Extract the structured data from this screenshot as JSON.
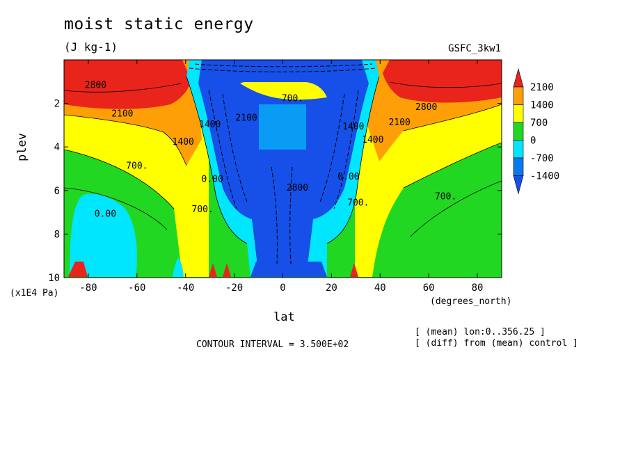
{
  "header": {
    "title": "moist static energy",
    "units": "(J kg-1)",
    "model": "GSFC_3kw1"
  },
  "footer": {
    "contour_interval": "CONTOUR INTERVAL = 3.500E+02",
    "mean_note": "[ (mean) lon:0..356.25 ]",
    "diff_note": "[ (diff) from (mean) control ]"
  },
  "chart_data": {
    "type": "heatmap",
    "title": "moist static energy",
    "subtitle": "(J kg-1)",
    "xlabel": "lat",
    "xunit": "(degrees_north)",
    "ylabel": "plev",
    "yunit": "(x1E4 Pa)",
    "xlim": [
      -90,
      90
    ],
    "ylim": [
      10,
      0
    ],
    "x_ticks": [
      -80,
      -60,
      -40,
      -20,
      0,
      20,
      40,
      60,
      80
    ],
    "x_tick_labels": [
      "-80",
      "-60",
      "-40",
      "-20",
      "0",
      "20",
      "40",
      "60",
      "80"
    ],
    "y_ticks": [
      2,
      4,
      6,
      8,
      10
    ],
    "y_tick_labels": [
      "2",
      "4",
      "6",
      "8",
      "10"
    ],
    "contour_levels": [
      -1400,
      -700,
      0,
      700,
      1400,
      2100
    ],
    "colorbar": {
      "labels": [
        "2100",
        "1400",
        "700",
        "0",
        "-700",
        "-1400"
      ],
      "colors": [
        "#e8241b",
        "#ff9f07",
        "#ffff00",
        "#22d722",
        "#00e6ff",
        "#0a78f0",
        "#1650e8"
      ]
    },
    "contour_labels": [
      {
        "text": "2800",
        "x": -77,
        "y": 1.3
      },
      {
        "text": "2100",
        "x": -66,
        "y": 2.6
      },
      {
        "text": "1400",
        "x": -41,
        "y": 3.9
      },
      {
        "text": "700.",
        "x": -60,
        "y": 5.0
      },
      {
        "text": "0.00",
        "x": -73,
        "y": 7.2
      },
      {
        "text": "700.",
        "x": -33,
        "y": 7.0
      },
      {
        "text": "0.00",
        "x": -29,
        "y": 5.6
      },
      {
        "text": "1400",
        "x": -30,
        "y": 3.1
      },
      {
        "text": "2100",
        "x": -15,
        "y": 2.8
      },
      {
        "text": "700.",
        "x": 4,
        "y": 1.9
      },
      {
        "text": "2800",
        "x": 6,
        "y": 6.0
      },
      {
        "text": "0.00",
        "x": 27,
        "y": 5.5
      },
      {
        "text": "700.",
        "x": 31,
        "y": 6.7
      },
      {
        "text": "1400",
        "x": 29,
        "y": 3.2
      },
      {
        "text": "1400",
        "x": 37,
        "y": 3.8
      },
      {
        "text": "2100",
        "x": 48,
        "y": 3.0
      },
      {
        "text": "2800",
        "x": 59,
        "y": 2.3
      },
      {
        "text": "700.",
        "x": 67,
        "y": 6.4
      }
    ]
  }
}
